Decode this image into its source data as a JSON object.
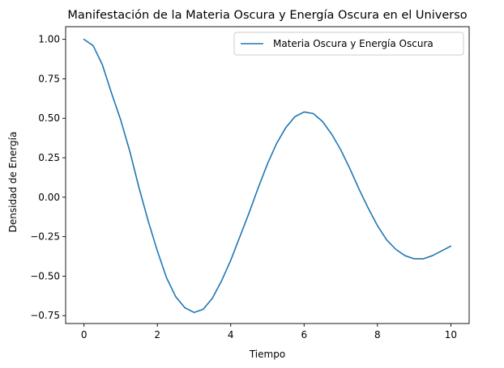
{
  "chart_data": {
    "type": "line",
    "title": "Manifestación de la Materia Oscura y Energía Oscura en el Universo",
    "xlabel": "Tiempo",
    "ylabel": "Densidad de Energía",
    "xlim": [
      -0.5,
      10.5
    ],
    "ylim": [
      -0.8,
      1.08
    ],
    "xticks": [
      0,
      2,
      4,
      6,
      8,
      10
    ],
    "xtick_labels": [
      "0",
      "2",
      "4",
      "6",
      "8",
      "10"
    ],
    "yticks": [
      -0.75,
      -0.5,
      -0.25,
      0.0,
      0.25,
      0.5,
      0.75,
      1.0
    ],
    "ytick_labels": [
      "−0.75",
      "−0.50",
      "−0.25",
      "0.00",
      "0.25",
      "0.50",
      "0.75",
      "1.00"
    ],
    "grid": false,
    "legend_position": "top-right",
    "series": [
      {
        "name": "Materia Oscura y Energía Oscura",
        "color": "#1f77b4",
        "x": [
          0.0,
          0.25,
          0.5,
          0.75,
          1.0,
          1.25,
          1.5,
          1.75,
          2.0,
          2.25,
          2.5,
          2.75,
          3.0,
          3.25,
          3.5,
          3.75,
          4.0,
          4.25,
          4.5,
          4.75,
          5.0,
          5.25,
          5.5,
          5.75,
          6.0,
          6.25,
          6.5,
          6.75,
          7.0,
          7.25,
          7.5,
          7.75,
          8.0,
          8.25,
          8.5,
          8.75,
          9.0,
          9.25,
          9.5,
          9.75,
          10.0
        ],
        "y": [
          1.0,
          0.96,
          0.84,
          0.66,
          0.49,
          0.29,
          0.06,
          -0.15,
          -0.34,
          -0.51,
          -0.63,
          -0.7,
          -0.73,
          -0.71,
          -0.64,
          -0.53,
          -0.4,
          -0.25,
          -0.1,
          0.06,
          0.21,
          0.34,
          0.44,
          0.51,
          0.54,
          0.53,
          0.48,
          0.4,
          0.3,
          0.18,
          0.05,
          -0.07,
          -0.18,
          -0.27,
          -0.33,
          -0.37,
          -0.39,
          -0.39,
          -0.37,
          -0.34,
          -0.31
        ]
      }
    ]
  }
}
